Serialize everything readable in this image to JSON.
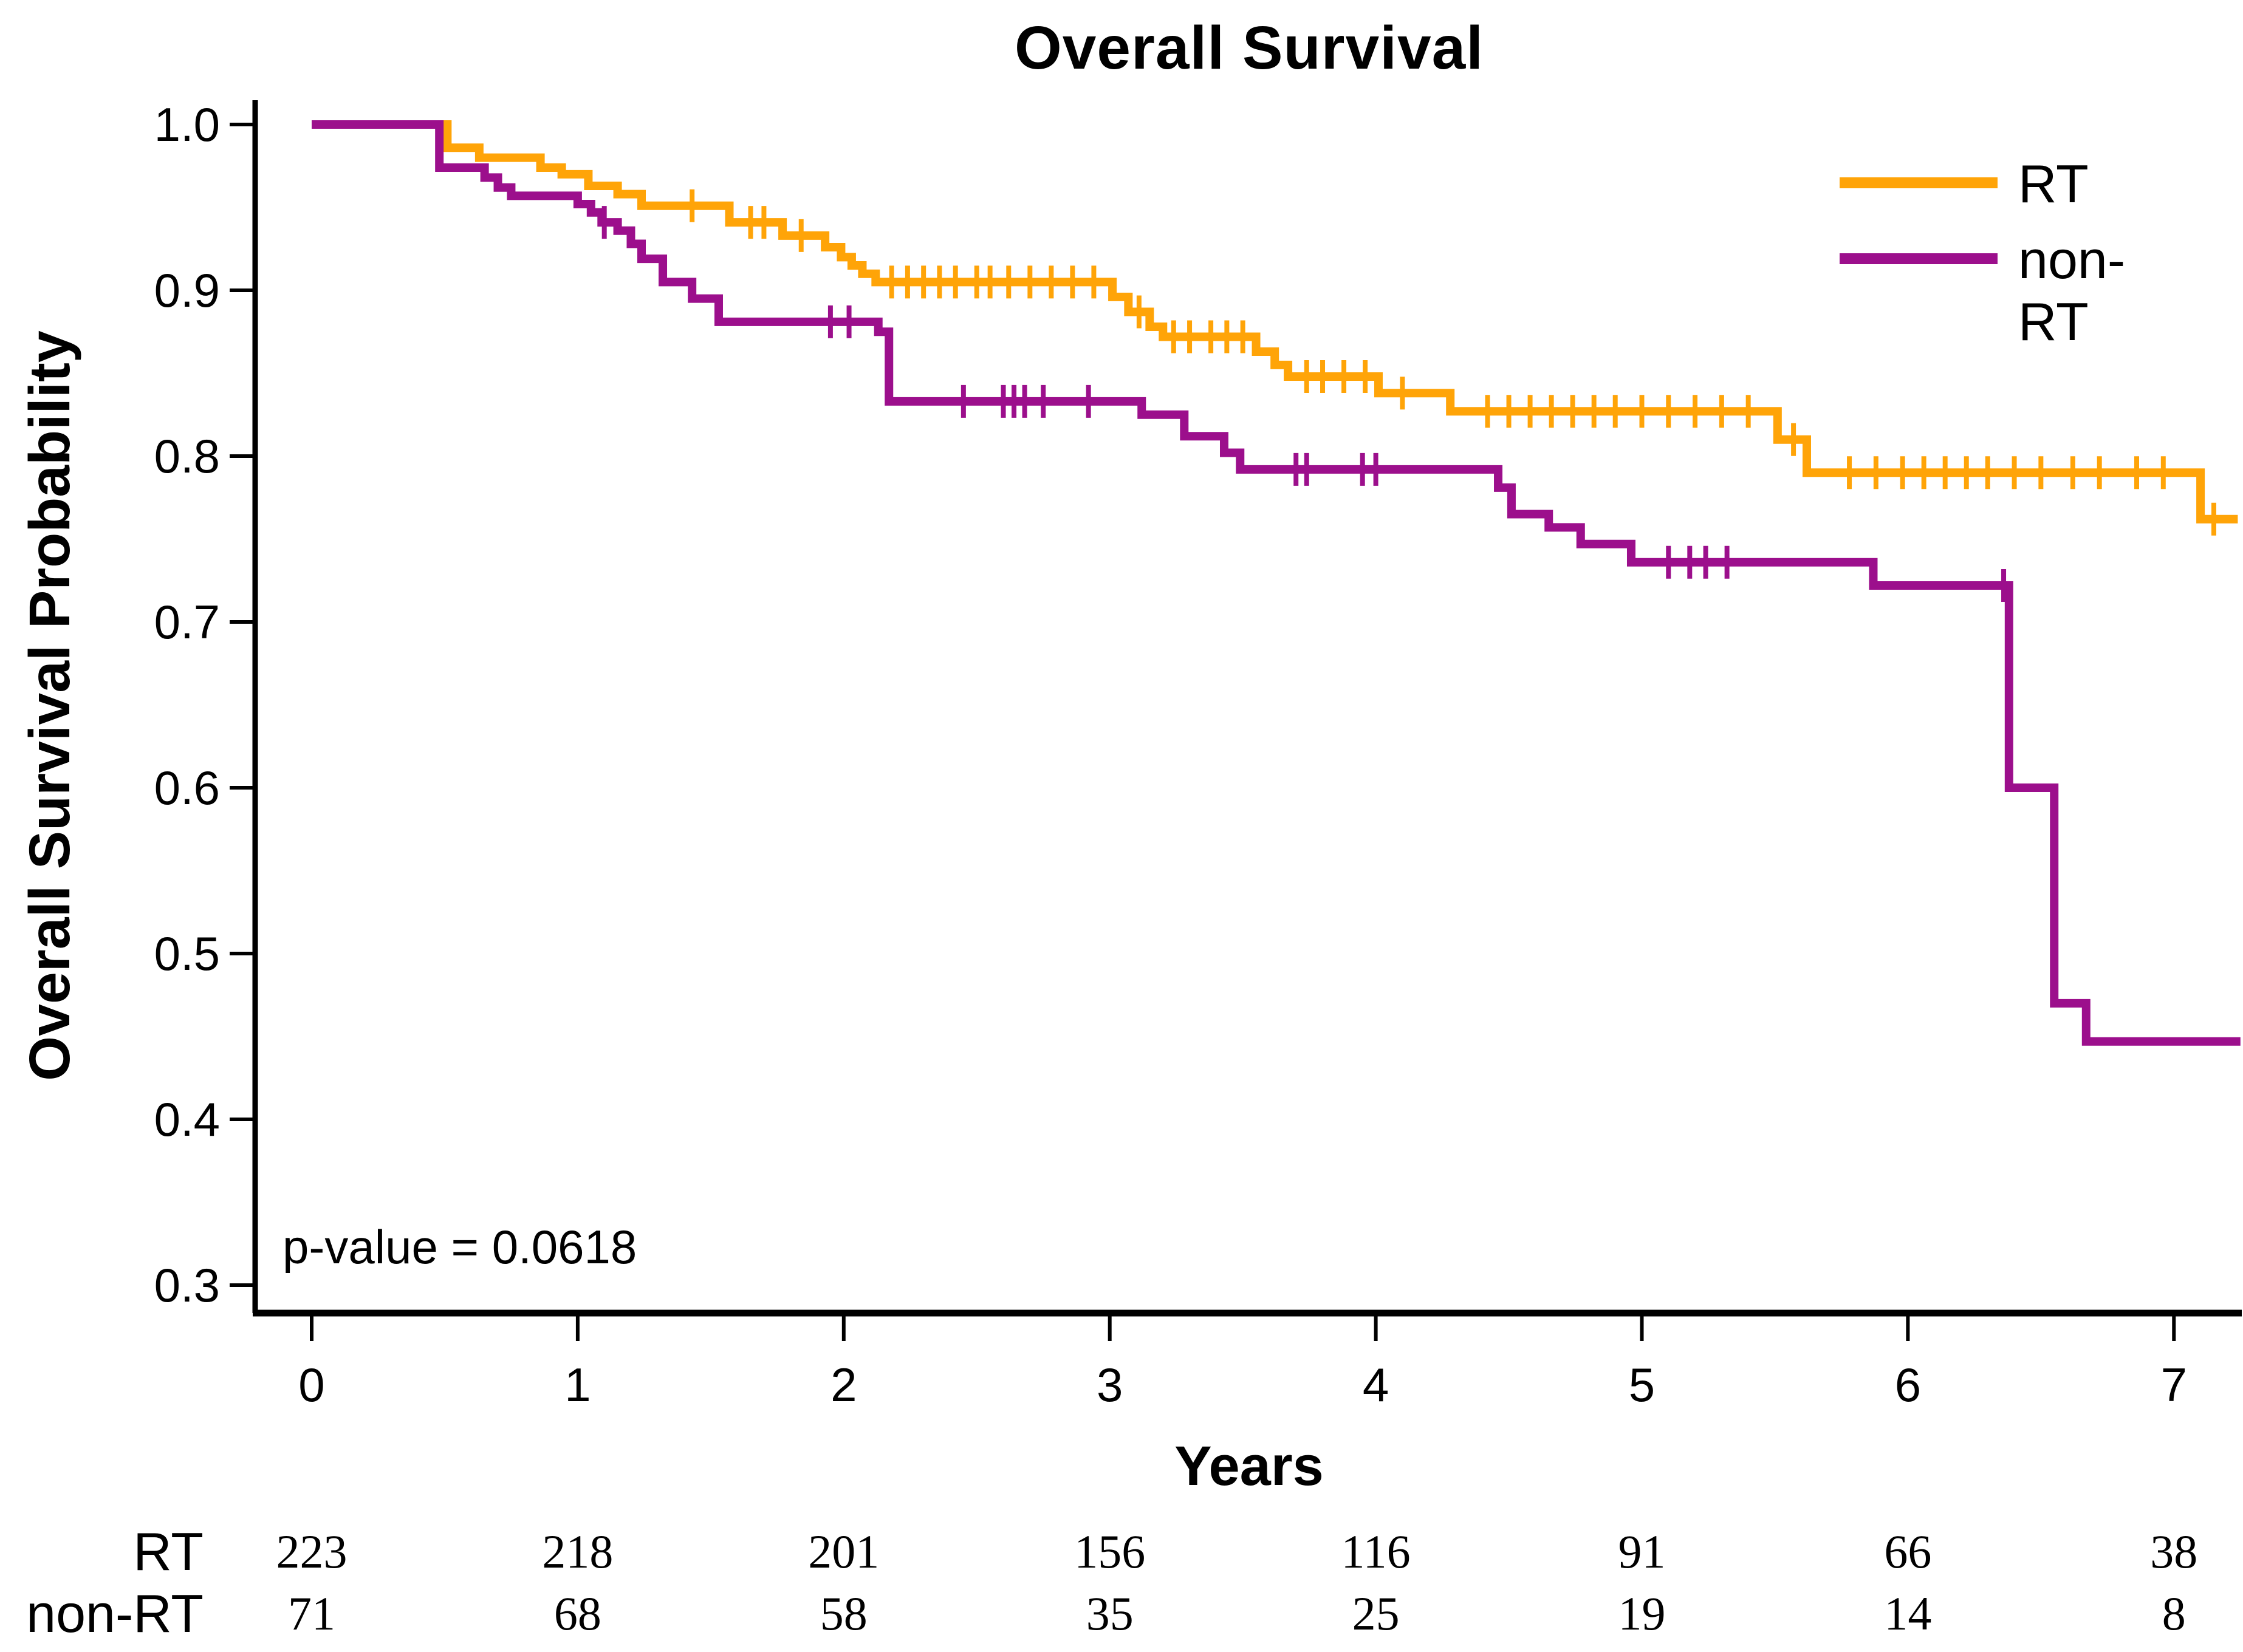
{
  "title": "Overall Survival",
  "p_value_text": "p-value = 0.0618",
  "axes": {
    "x_label": "Years",
    "y_label": "Overall Survival Probability"
  },
  "legend": [
    {
      "label": "RT",
      "color": "#FFA408"
    },
    {
      "label": "non-RT",
      "color": "#9C0F8C"
    }
  ],
  "chart_data": {
    "type": "line",
    "subtype": "kaplan-meier-step",
    "title": "Overall Survival",
    "xlabel": "Years",
    "ylabel": "Overall Survival Probability",
    "xlim": [
      0,
      7.3
    ],
    "ylim": [
      0.3,
      1.0
    ],
    "x_ticks": [
      0,
      1,
      2,
      3,
      4,
      5,
      6,
      7
    ],
    "y_ticks": [
      1.0,
      0.9,
      0.8,
      0.7,
      0.6,
      0.5,
      0.4,
      0.3
    ],
    "grid": false,
    "legend_position": "top-right",
    "annotations": [
      {
        "text": "p-value = 0.0618",
        "x": 0.55,
        "y": 0.315
      }
    ],
    "series": [
      {
        "name": "RT",
        "color": "#FFA408",
        "end_time": 7.24,
        "steps": [
          [
            0,
            1.0
          ],
          [
            0.51,
            0.986
          ],
          [
            0.63,
            0.98
          ],
          [
            0.86,
            0.974
          ],
          [
            0.94,
            0.97
          ],
          [
            1.04,
            0.963
          ],
          [
            1.15,
            0.958
          ],
          [
            1.24,
            0.951
          ],
          [
            1.57,
            0.941
          ],
          [
            1.77,
            0.933
          ],
          [
            1.93,
            0.926
          ],
          [
            1.99,
            0.92
          ],
          [
            2.03,
            0.915
          ],
          [
            2.07,
            0.91
          ],
          [
            2.12,
            0.905
          ],
          [
            3.01,
            0.896
          ],
          [
            3.07,
            0.887
          ],
          [
            3.15,
            0.878
          ],
          [
            3.2,
            0.872
          ],
          [
            3.55,
            0.863
          ],
          [
            3.62,
            0.855
          ],
          [
            3.67,
            0.848
          ],
          [
            4.01,
            0.838
          ],
          [
            4.28,
            0.827
          ],
          [
            5.51,
            0.81
          ],
          [
            5.62,
            0.79
          ],
          [
            7.1,
            0.762
          ]
        ],
        "censor_times": [
          1.43,
          1.65,
          1.7,
          1.84,
          2.18,
          2.24,
          2.3,
          2.36,
          2.42,
          2.5,
          2.55,
          2.62,
          2.7,
          2.78,
          2.86,
          2.94,
          3.11,
          3.24,
          3.3,
          3.38,
          3.44,
          3.5,
          3.74,
          3.8,
          3.88,
          3.96,
          4.1,
          4.42,
          4.5,
          4.58,
          4.66,
          4.74,
          4.82,
          4.9,
          5.0,
          5.1,
          5.2,
          5.3,
          5.4,
          5.57,
          5.78,
          5.88,
          5.98,
          6.06,
          6.14,
          6.22,
          6.3,
          6.4,
          6.5,
          6.62,
          6.72,
          6.86,
          6.96,
          7.15
        ]
      },
      {
        "name": "non-RT",
        "color": "#9C0F8C",
        "end_time": 7.25,
        "steps": [
          [
            0,
            1.0
          ],
          [
            0.48,
            0.974
          ],
          [
            0.65,
            0.968
          ],
          [
            0.7,
            0.962
          ],
          [
            0.75,
            0.957
          ],
          [
            1.0,
            0.952
          ],
          [
            1.05,
            0.947
          ],
          [
            1.09,
            0.941
          ],
          [
            1.15,
            0.936
          ],
          [
            1.2,
            0.928
          ],
          [
            1.24,
            0.919
          ],
          [
            1.32,
            0.905
          ],
          [
            1.43,
            0.895
          ],
          [
            1.53,
            0.881
          ],
          [
            2.13,
            0.875
          ],
          [
            2.17,
            0.833
          ],
          [
            3.12,
            0.825
          ],
          [
            3.28,
            0.812
          ],
          [
            3.43,
            0.802
          ],
          [
            3.49,
            0.792
          ],
          [
            4.46,
            0.781
          ],
          [
            4.51,
            0.765
          ],
          [
            4.65,
            0.757
          ],
          [
            4.77,
            0.747
          ],
          [
            4.96,
            0.736
          ],
          [
            5.87,
            0.722
          ],
          [
            6.38,
            0.6
          ],
          [
            6.55,
            0.47
          ],
          [
            6.67,
            0.447
          ]
        ],
        "censor_times": [
          1.1,
          1.95,
          2.02,
          2.45,
          2.6,
          2.64,
          2.68,
          2.75,
          2.92,
          3.7,
          3.74,
          3.95,
          4.0,
          5.1,
          5.18,
          5.24,
          5.32,
          6.36
        ]
      }
    ],
    "risk_table": {
      "time_points": [
        0,
        1,
        2,
        3,
        4,
        5,
        6,
        7
      ],
      "rows": [
        {
          "label": "RT",
          "counts": [
            223,
            218,
            201,
            156,
            116,
            91,
            66,
            38
          ]
        },
        {
          "label": "non-RT",
          "counts": [
            71,
            68,
            58,
            35,
            25,
            19,
            14,
            8
          ]
        }
      ]
    }
  }
}
